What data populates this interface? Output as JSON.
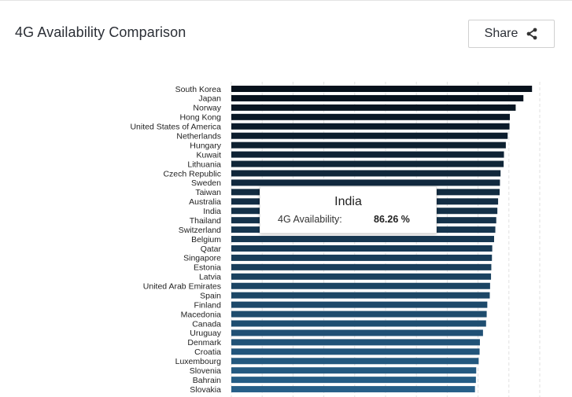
{
  "header": {
    "title": "4G Availability Comparison",
    "share_label": "Share"
  },
  "tooltip": {
    "title": "India",
    "label": "4G Availability:",
    "value": "86.26 %"
  },
  "colors": {
    "bar_dark": "#07111c",
    "bar_light": "#265f88",
    "grid": "#e0e0e0"
  },
  "chart_data": {
    "type": "bar",
    "orientation": "horizontal",
    "title": "4G Availability Comparison",
    "unit": "%",
    "xlim": [
      0,
      100
    ],
    "grid": true,
    "highlighted": "India",
    "categories": [
      "South Korea",
      "Japan",
      "Norway",
      "Hong Kong",
      "United States of America",
      "Netherlands",
      "Hungary",
      "Kuwait",
      "Lithuania",
      "Czech Republic",
      "Sweden",
      "Taiwan",
      "Australia",
      "India",
      "Thailand",
      "Switzerland",
      "Belgium",
      "Qatar",
      "Singapore",
      "Estonia",
      "Latvia",
      "United Arab Emirates",
      "Spain",
      "Finland",
      "Macedonia",
      "Canada",
      "Uruguay",
      "Denmark",
      "Croatia",
      "Luxembourg",
      "Slovenia",
      "Bahrain",
      "Slovakia"
    ],
    "values": [
      97.5,
      94.7,
      92.2,
      90.3,
      90.2,
      89.6,
      89.0,
      88.4,
      88.3,
      87.3,
      87.1,
      87.0,
      86.5,
      86.26,
      85.9,
      85.6,
      85.2,
      84.6,
      84.5,
      84.3,
      84.2,
      83.9,
      83.8,
      83.0,
      82.8,
      82.6,
      81.6,
      80.6,
      80.5,
      80.2,
      79.4,
      79.3,
      79.0
    ]
  }
}
